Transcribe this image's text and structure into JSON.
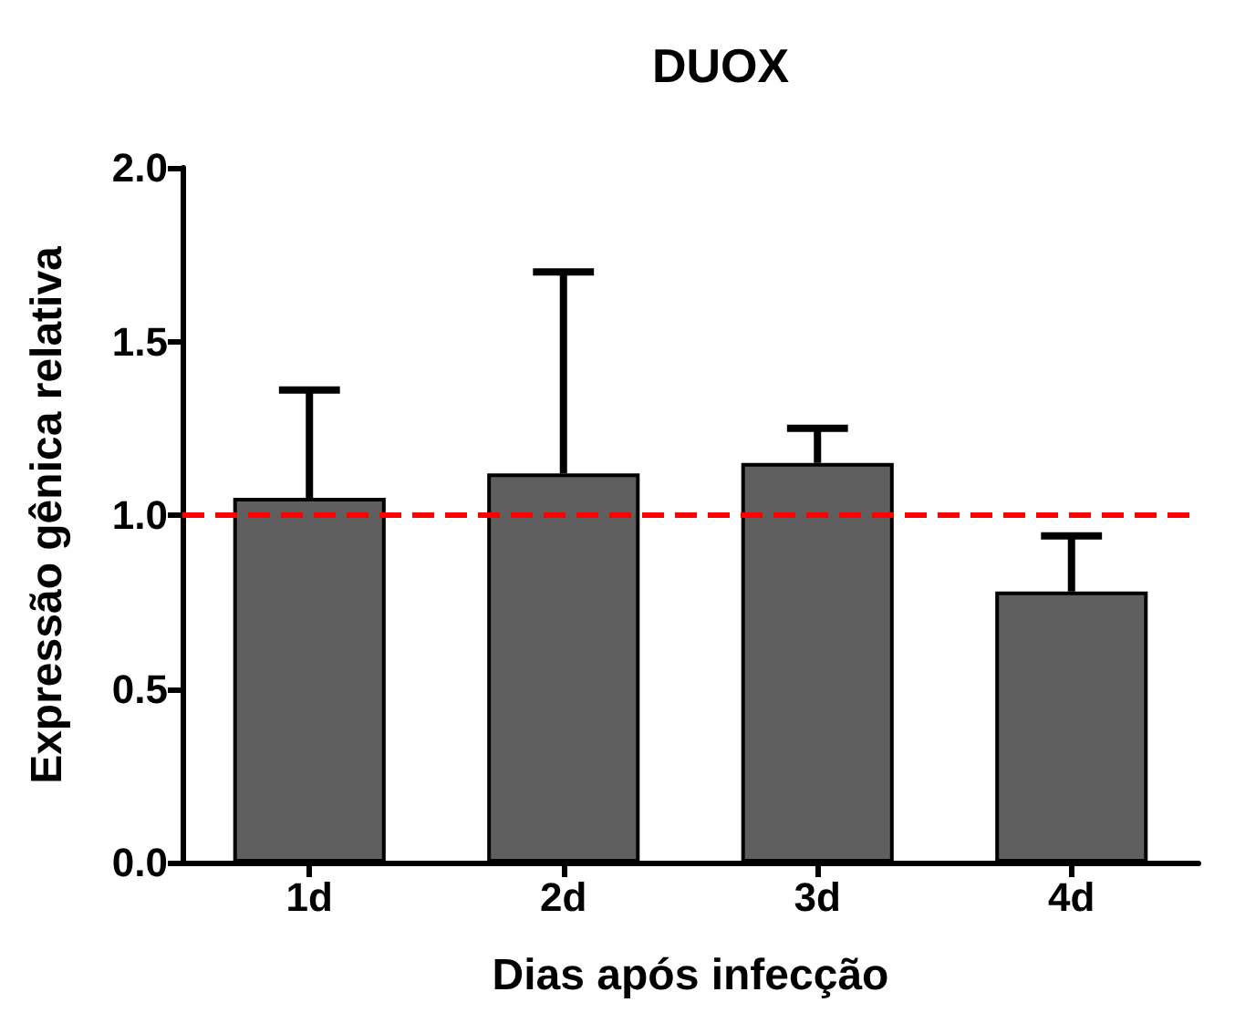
{
  "chart_data": {
    "type": "bar",
    "title": "DUOX",
    "xlabel": "Dias após infecção",
    "ylabel": "Expressão gênica relativa",
    "categories": [
      "1d",
      "2d",
      "3d",
      "4d"
    ],
    "values": [
      1.05,
      1.12,
      1.15,
      0.78
    ],
    "errors": [
      [
        1.05,
        1.36
      ],
      [
        1.12,
        1.7
      ],
      [
        1.15,
        1.25
      ],
      [
        0.78,
        0.94
      ]
    ],
    "color": "#5f5f5f",
    "ylim": [
      0,
      2.0
    ],
    "yticks": [
      {
        "value": 0,
        "label": "0.0"
      },
      {
        "value": 0.5,
        "label": "0.5"
      },
      {
        "value": 1.0,
        "label": "1.0"
      },
      {
        "value": 1.5,
        "label": "1.5"
      },
      {
        "value": 2.0,
        "label": "2.0"
      }
    ],
    "ref_lines": [
      {
        "axis": "y",
        "value": 1.0,
        "color": "#ff0000",
        "line_style": "dashed"
      }
    ],
    "grid": false
  }
}
